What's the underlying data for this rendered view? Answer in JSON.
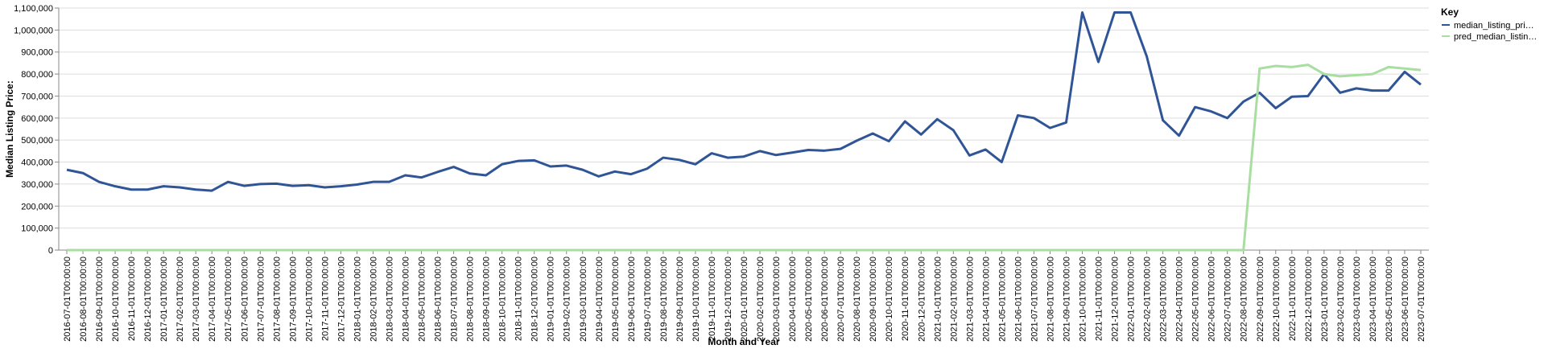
{
  "chart_data": {
    "type": "line",
    "xlabel": "Month and Year",
    "ylabel": "Median Listing Price:",
    "ylim": [
      0,
      1100000
    ],
    "y_ticks": [
      "0",
      "100,000",
      "200,000",
      "300,000",
      "400,000",
      "500,000",
      "600,000",
      "700,000",
      "800,000",
      "900,000",
      "1,000,000",
      "1,100,000"
    ],
    "y_tick_values": [
      0,
      100000,
      200000,
      300000,
      400000,
      500000,
      600000,
      700000,
      800000,
      900000,
      1000000,
      1100000
    ],
    "grid": true,
    "legend": {
      "title": "Key",
      "placement": "right"
    },
    "x": [
      "2016-07-01T00:00:00",
      "2016-08-01T00:00:00",
      "2016-09-01T00:00:00",
      "2016-10-01T00:00:00",
      "2016-11-01T00:00:00",
      "2016-12-01T00:00:00",
      "2017-01-01T00:00:00",
      "2017-02-01T00:00:00",
      "2017-03-01T00:00:00",
      "2017-04-01T00:00:00",
      "2017-05-01T00:00:00",
      "2017-06-01T00:00:00",
      "2017-07-01T00:00:00",
      "2017-08-01T00:00:00",
      "2017-09-01T00:00:00",
      "2017-10-01T00:00:00",
      "2017-11-01T00:00:00",
      "2017-12-01T00:00:00",
      "2018-01-01T00:00:00",
      "2018-02-01T00:00:00",
      "2018-03-01T00:00:00",
      "2018-04-01T00:00:00",
      "2018-05-01T00:00:00",
      "2018-06-01T00:00:00",
      "2018-07-01T00:00:00",
      "2018-08-01T00:00:00",
      "2018-09-01T00:00:00",
      "2018-10-01T00:00:00",
      "2018-11-01T00:00:00",
      "2018-12-01T00:00:00",
      "2019-01-01T00:00:00",
      "2019-02-01T00:00:00",
      "2019-03-01T00:00:00",
      "2019-04-01T00:00:00",
      "2019-05-01T00:00:00",
      "2019-06-01T00:00:00",
      "2019-07-01T00:00:00",
      "2019-08-01T00:00:00",
      "2019-09-01T00:00:00",
      "2019-10-01T00:00:00",
      "2019-11-01T00:00:00",
      "2019-12-01T00:00:00",
      "2020-01-01T00:00:00",
      "2020-02-01T00:00:00",
      "2020-03-01T00:00:00",
      "2020-04-01T00:00:00",
      "2020-05-01T00:00:00",
      "2020-06-01T00:00:00",
      "2020-07-01T00:00:00",
      "2020-08-01T00:00:00",
      "2020-09-01T00:00:00",
      "2020-10-01T00:00:00",
      "2020-11-01T00:00:00",
      "2020-12-01T00:00:00",
      "2021-01-01T00:00:00",
      "2021-02-01T00:00:00",
      "2021-03-01T00:00:00",
      "2021-04-01T00:00:00",
      "2021-05-01T00:00:00",
      "2021-06-01T00:00:00",
      "2021-07-01T00:00:00",
      "2021-08-01T00:00:00",
      "2021-09-01T00:00:00",
      "2021-10-01T00:00:00",
      "2021-11-01T00:00:00",
      "2021-12-01T00:00:00",
      "2022-01-01T00:00:00",
      "2022-02-01T00:00:00",
      "2022-03-01T00:00:00",
      "2022-04-01T00:00:00",
      "2022-05-01T00:00:00",
      "2022-06-01T00:00:00",
      "2022-07-01T00:00:00",
      "2022-08-01T00:00:00",
      "2022-09-01T00:00:00",
      "2022-10-01T00:00:00",
      "2022-11-01T00:00:00",
      "2022-12-01T00:00:00",
      "2023-01-01T00:00:00",
      "2023-02-01T00:00:00",
      "2023-03-01T00:00:00",
      "2023-04-01T00:00:00",
      "2023-05-01T00:00:00",
      "2023-06-01T00:00:00",
      "2023-07-01T00:00:00"
    ],
    "series": [
      {
        "name": "median_listing_pri…",
        "color": "#2f5597",
        "values": [
          365000,
          350000,
          310000,
          290000,
          275000,
          275000,
          290000,
          285000,
          275000,
          270000,
          310000,
          292000,
          300000,
          302000,
          292000,
          295000,
          285000,
          290000,
          298000,
          310000,
          310000,
          340000,
          330000,
          355000,
          378000,
          348000,
          340000,
          390000,
          405000,
          408000,
          380000,
          384000,
          365000,
          335000,
          357000,
          345000,
          370000,
          420000,
          410000,
          390000,
          440000,
          420000,
          425000,
          450000,
          432000,
          443000,
          455000,
          452000,
          460000,
          497000,
          530000,
          495000,
          585000,
          525000,
          595000,
          545000,
          430000,
          457000,
          400000,
          612000,
          600000,
          555000,
          580000,
          1080000,
          855000,
          1080000,
          1080000,
          880000,
          590000,
          520000,
          650000,
          630000,
          600000,
          675000,
          715000,
          645000,
          697000,
          700000,
          800000,
          715000,
          735000,
          725000,
          725000,
          810000,
          752000
        ]
      },
      {
        "name": "pred_median_listin…",
        "color": "#a8dea0",
        "values": [
          0,
          0,
          0,
          0,
          0,
          0,
          0,
          0,
          0,
          0,
          0,
          0,
          0,
          0,
          0,
          0,
          0,
          0,
          0,
          0,
          0,
          0,
          0,
          0,
          0,
          0,
          0,
          0,
          0,
          0,
          0,
          0,
          0,
          0,
          0,
          0,
          0,
          0,
          0,
          0,
          0,
          0,
          0,
          0,
          0,
          0,
          0,
          0,
          0,
          0,
          0,
          0,
          0,
          0,
          0,
          0,
          0,
          0,
          0,
          0,
          0,
          0,
          0,
          0,
          0,
          0,
          0,
          0,
          0,
          0,
          0,
          0,
          0,
          0,
          825000,
          837000,
          832000,
          842000,
          800000,
          790000,
          795000,
          800000,
          832000,
          825000,
          818000
        ]
      }
    ]
  }
}
